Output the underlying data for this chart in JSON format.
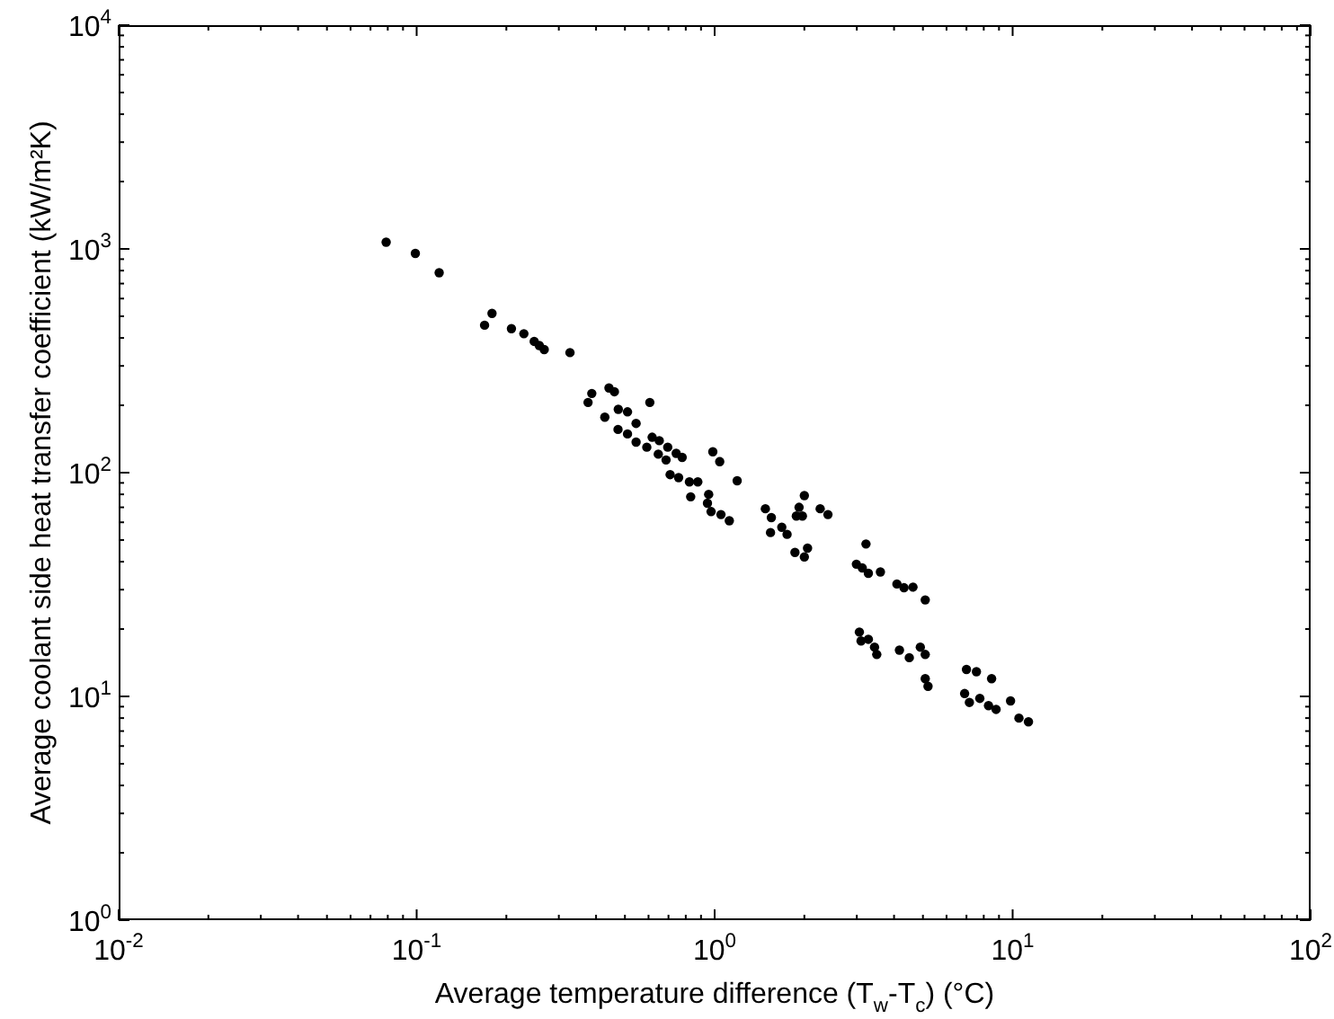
{
  "chart_data": {
    "type": "scatter",
    "xlabel": "Average temperature difference (T$_{w}$-T$_{c}$) (°C)",
    "ylabel": "Average coolant side heat transfer coefficient (kW/m²K)",
    "log": "xy",
    "xlim": [
      0.01,
      100
    ],
    "ylim": [
      1,
      10000
    ],
    "xticks": [
      {
        "value": 0.01,
        "label": "10$^{-2}$"
      },
      {
        "value": 0.1,
        "label": "10$^{-1}$"
      },
      {
        "value": 1,
        "label": "10$^{0}$"
      },
      {
        "value": 10,
        "label": "10$^{1}$"
      },
      {
        "value": 100,
        "label": "10$^{2}$"
      }
    ],
    "yticks": [
      {
        "value": 1,
        "label": "10$^{0}$"
      },
      {
        "value": 10,
        "label": "10$^{1}$"
      },
      {
        "value": 100,
        "label": "10$^{2}$"
      },
      {
        "value": 1000,
        "label": "10$^{3}$"
      },
      {
        "value": 10000,
        "label": "10$^{4}$"
      }
    ],
    "grid": false,
    "legend": false,
    "marker": "circle",
    "series": [
      {
        "color": "#000000",
        "x": [
          0.079,
          0.099,
          0.119,
          0.169,
          0.179,
          0.208,
          0.229,
          0.248,
          0.258,
          0.268,
          0.327,
          0.387,
          0.376,
          0.442,
          0.461,
          0.606,
          0.475,
          0.51,
          0.428,
          0.545,
          0.474,
          0.51,
          0.545,
          0.592,
          0.617,
          0.652,
          0.696,
          0.743,
          0.778,
          0.687,
          0.647,
          0.709,
          0.757,
          0.823,
          0.878,
          0.831,
          0.955,
          0.946,
          0.986,
          1.04,
          0.973,
          1.05,
          1.12,
          1.19,
          1.48,
          1.55,
          1.54,
          1.68,
          1.75,
          1.92,
          2.0,
          1.88,
          1.97,
          2.26,
          2.4,
          1.86,
          2.0,
          2.05,
          3.22,
          2.99,
          3.13,
          3.28,
          3.6,
          4.09,
          4.32,
          4.63,
          5.09,
          3.06,
          3.1,
          3.28,
          3.44,
          3.5,
          4.17,
          4.5,
          4.9,
          5.09,
          5.09,
          5.2,
          7.0,
          7.56,
          8.5,
          6.9,
          7.16,
          7.76,
          8.3,
          8.8,
          9.84,
          10.5,
          11.3
        ],
        "values": [
          1072,
          955,
          783,
          456,
          515,
          440,
          418,
          386,
          370,
          355,
          344,
          226,
          206,
          239,
          230,
          206,
          192,
          187,
          177,
          166,
          156,
          149,
          137,
          130,
          144,
          139,
          130,
          122,
          117,
          114,
          121,
          98,
          95,
          91,
          91,
          78,
          80,
          73,
          124,
          112,
          67,
          65,
          61,
          92,
          69,
          63,
          54,
          57,
          53,
          70,
          79,
          64,
          64,
          69,
          65,
          44,
          42,
          46,
          48,
          39,
          37.5,
          35.5,
          36,
          31.8,
          30.6,
          30.8,
          27,
          19.4,
          17.7,
          18,
          16.6,
          15.4,
          16.1,
          14.9,
          16.6,
          15.4,
          12,
          11.1,
          13.2,
          12.9,
          12,
          10.3,
          9.4,
          9.8,
          9.1,
          8.75,
          9.55,
          8.0,
          7.7
        ]
      }
    ]
  }
}
